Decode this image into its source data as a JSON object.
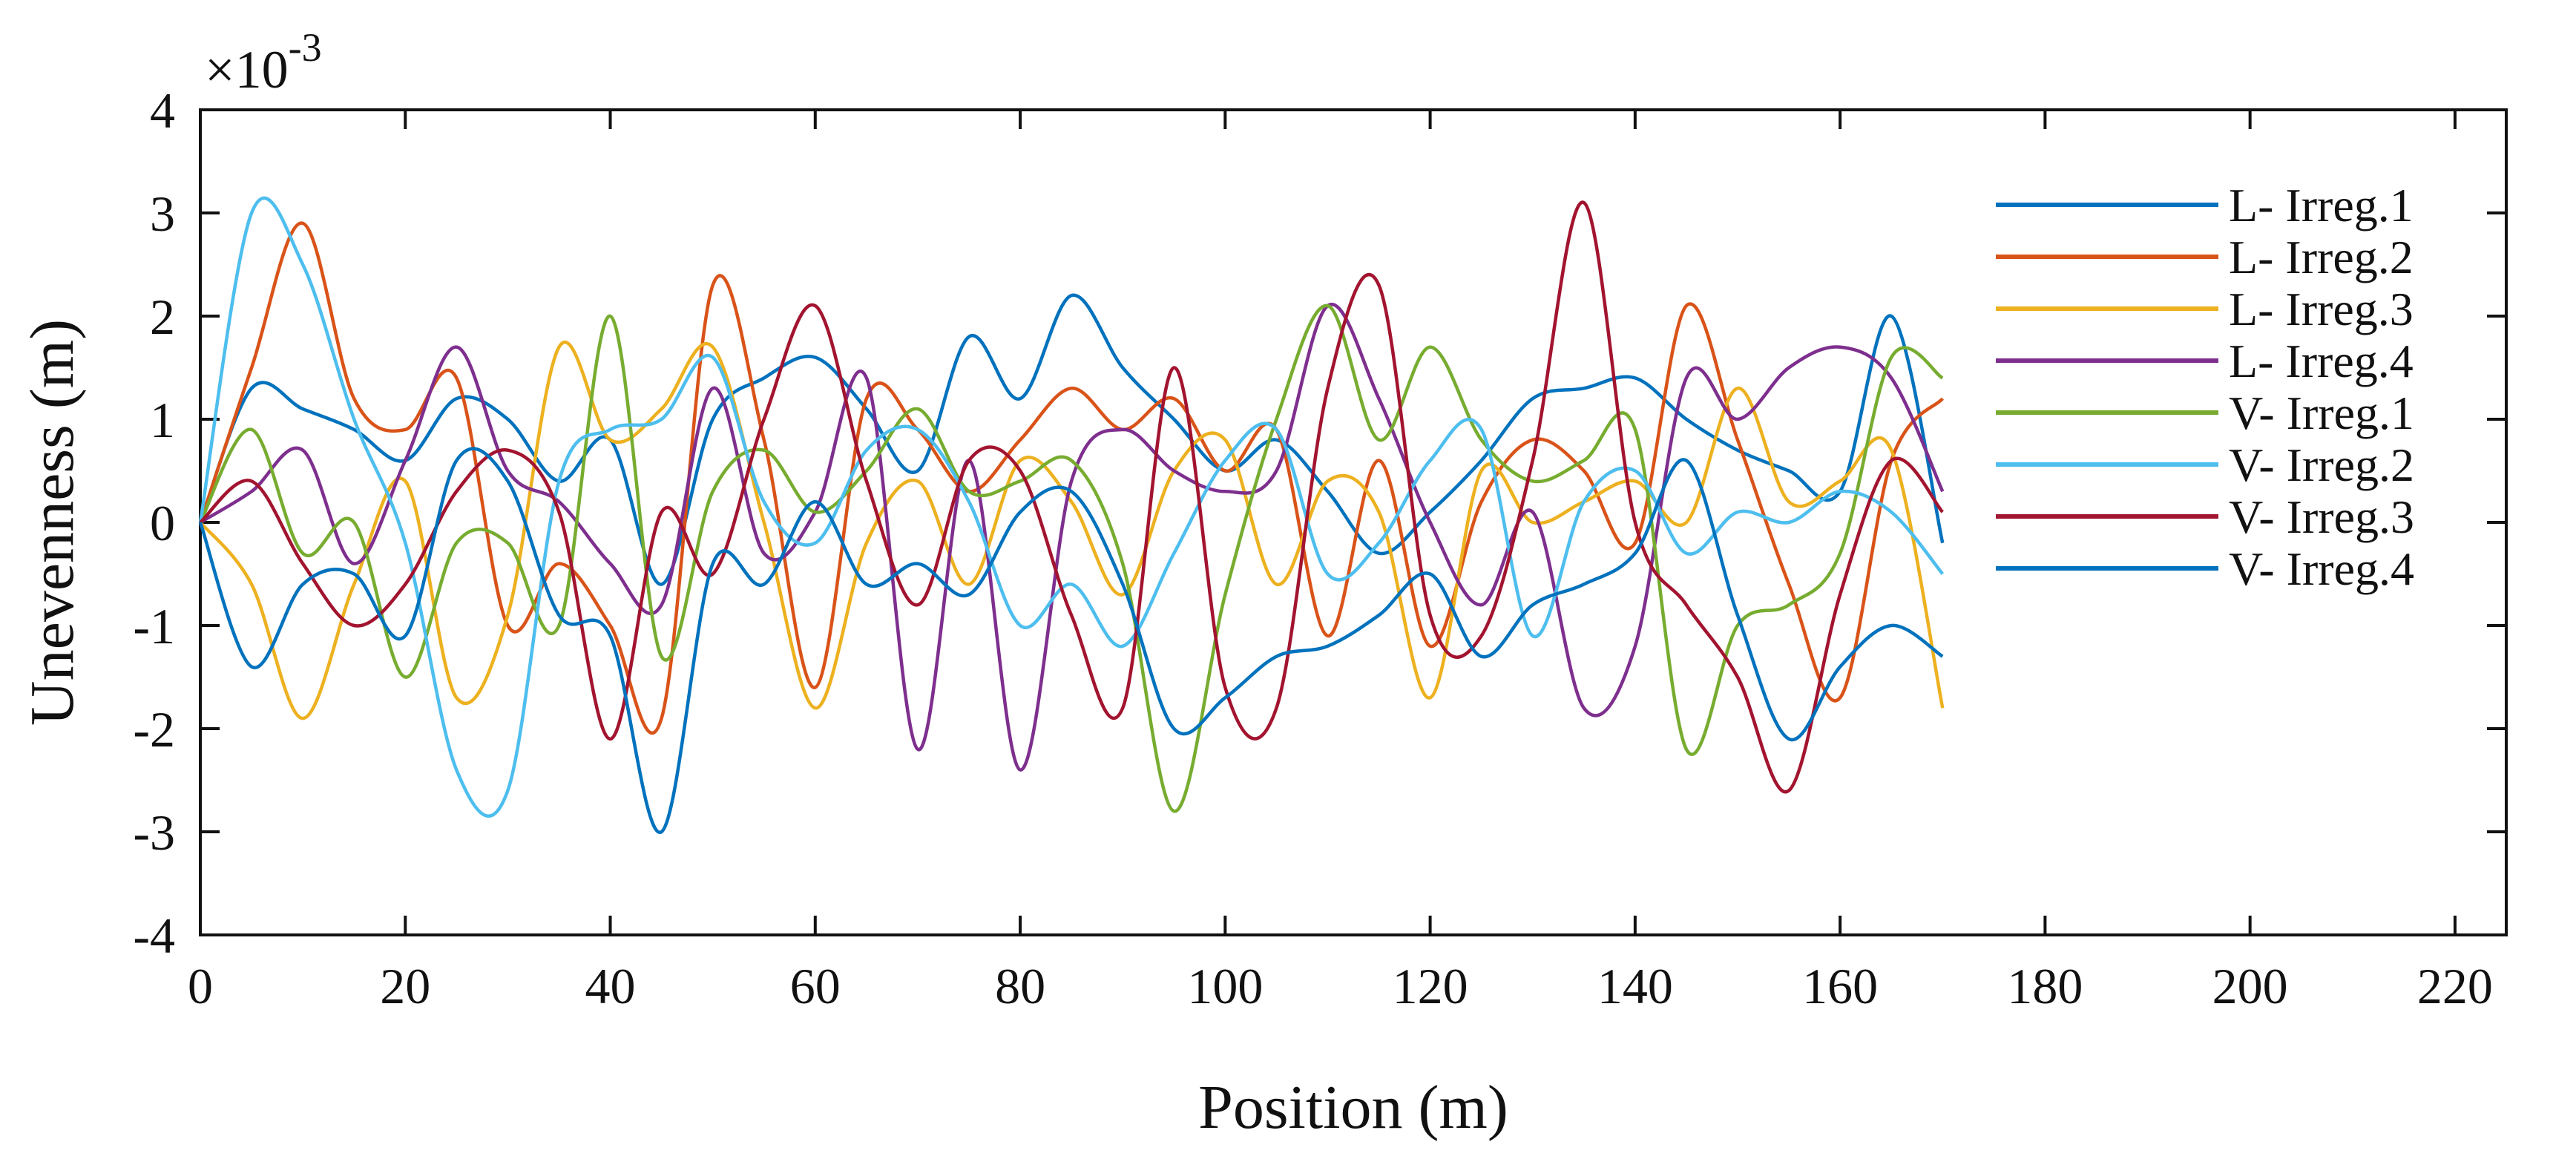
{
  "chart_data": {
    "type": "line",
    "title": "",
    "xlabel": "Position (m)",
    "ylabel": "Unevenness (m)",
    "y_exponent_label": "×10",
    "y_exponent_power": "-3",
    "xlim": [
      0,
      225
    ],
    "ylim": [
      -4,
      4
    ],
    "xticks": [
      0,
      20,
      40,
      60,
      80,
      100,
      120,
      140,
      160,
      180,
      200,
      220
    ],
    "yticks": [
      -4,
      -3,
      -2,
      -1,
      0,
      1,
      2,
      3,
      4
    ],
    "legend_position": "top-right",
    "x": [
      0,
      5,
      10,
      15,
      20,
      25,
      30,
      35,
      40,
      45,
      50,
      55,
      60,
      65,
      70,
      75,
      80,
      85,
      90,
      95,
      100,
      105,
      110,
      115,
      120,
      125,
      130,
      135,
      140,
      145,
      150,
      155,
      160,
      165,
      170
    ],
    "series": [
      {
        "name": "L- Irreg.1",
        "color": "#0072BD",
        "values": [
          0,
          1.3,
          1.1,
          0.9,
          0.6,
          1.2,
          1.0,
          0.4,
          0.8,
          -0.6,
          1.0,
          1.4,
          1.6,
          1.1,
          0.5,
          1.8,
          1.2,
          2.2,
          1.5,
          1.0,
          0.5,
          0.8,
          0.3,
          -0.3,
          0.1,
          0.6,
          1.2,
          1.3,
          1.4,
          1.0,
          0.7,
          0.5,
          0.3,
          2.0,
          -0.2
        ]
      },
      {
        "name": "L- Irreg.2",
        "color": "#D95319",
        "values": [
          0,
          1.5,
          2.9,
          1.2,
          0.9,
          1.4,
          -1.0,
          -0.4,
          -1.0,
          -1.9,
          2.3,
          0.8,
          -1.6,
          1.2,
          0.9,
          0.3,
          0.8,
          1.3,
          0.9,
          1.2,
          0.5,
          0.9,
          -1.1,
          0.6,
          -1.2,
          0.2,
          0.8,
          0.5,
          -0.2,
          2.1,
          0.8,
          -0.6,
          -1.7,
          0.6,
          1.2
        ]
      },
      {
        "name": "L- Irreg.3",
        "color": "#EDB120",
        "values": [
          0,
          -0.6,
          -1.9,
          -0.6,
          0.4,
          -1.7,
          -0.9,
          1.7,
          0.8,
          1.1,
          1.7,
          0.0,
          -1.8,
          -0.2,
          0.4,
          -0.6,
          0.6,
          0.2,
          -0.7,
          0.5,
          0.8,
          -0.6,
          0.4,
          0.1,
          -1.7,
          0.5,
          0.0,
          0.2,
          0.4,
          0.0,
          1.3,
          0.2,
          0.4,
          0.7,
          -1.8
        ]
      },
      {
        "name": "L- Irreg.4",
        "color": "#7E2F8E",
        "values": [
          0,
          0.3,
          0.7,
          -0.4,
          0.6,
          1.7,
          0.5,
          0.2,
          -0.4,
          -0.8,
          1.3,
          -0.3,
          0.1,
          1.4,
          -2.2,
          0.6,
          -2.4,
          0.4,
          0.9,
          0.5,
          0.3,
          0.5,
          2.1,
          1.2,
          0.0,
          -0.8,
          0.1,
          -1.8,
          -1.2,
          1.4,
          1.0,
          1.5,
          1.7,
          1.4,
          0.3
        ]
      },
      {
        "name": "V- Irreg.1",
        "color": "#77AC30",
        "values": [
          0,
          0.9,
          -0.3,
          0.0,
          -1.5,
          -0.2,
          -0.2,
          -1.0,
          2.0,
          -1.3,
          0.3,
          0.7,
          0.1,
          0.5,
          1.1,
          0.3,
          0.4,
          0.6,
          -0.4,
          -2.8,
          -0.7,
          1.0,
          2.1,
          0.8,
          1.7,
          0.8,
          0.4,
          0.6,
          0.9,
          -2.2,
          -1.0,
          -0.8,
          -0.3,
          1.6,
          1.4
        ]
      },
      {
        "name": "V- Irreg.2",
        "color": "#4DBEEE",
        "values": [
          0,
          3.0,
          2.5,
          1.0,
          -0.2,
          -2.4,
          -2.6,
          0.4,
          0.9,
          1.0,
          1.6,
          0.2,
          -0.2,
          0.7,
          0.9,
          0.2,
          -1.0,
          -0.6,
          -1.2,
          -0.3,
          0.6,
          0.9,
          -0.5,
          -0.2,
          0.6,
          0.9,
          -1.1,
          0.2,
          0.5,
          -0.3,
          0.1,
          0.0,
          0.3,
          0.1,
          -0.5
        ]
      },
      {
        "name": "V- Irreg.3",
        "color": "#A2142F",
        "values": [
          0,
          0.4,
          -0.4,
          -1.0,
          -0.6,
          0.3,
          0.7,
          0.1,
          -2.1,
          0.1,
          -0.5,
          1.0,
          2.1,
          0.4,
          -0.8,
          0.6,
          0.5,
          -0.9,
          -1.8,
          1.5,
          -1.6,
          -1.8,
          1.3,
          2.3,
          -0.9,
          -1.1,
          0.6,
          3.1,
          0.0,
          -0.8,
          -1.5,
          -2.6,
          -0.7,
          0.6,
          0.1
        ]
      },
      {
        "name": "V- Irreg.4",
        "color": "#0072BD",
        "values": [
          0,
          -1.4,
          -0.6,
          -0.5,
          -1.1,
          0.6,
          0.4,
          -0.9,
          -1.1,
          -3.0,
          -0.4,
          -0.6,
          0.2,
          -0.6,
          -0.4,
          -0.7,
          0.1,
          0.3,
          -0.6,
          -2.0,
          -1.7,
          -1.3,
          -1.2,
          -0.9,
          -0.5,
          -1.3,
          -0.8,
          -0.6,
          -0.3,
          0.6,
          -0.9,
          -2.1,
          -1.4,
          -1.0,
          -1.3
        ]
      }
    ]
  }
}
